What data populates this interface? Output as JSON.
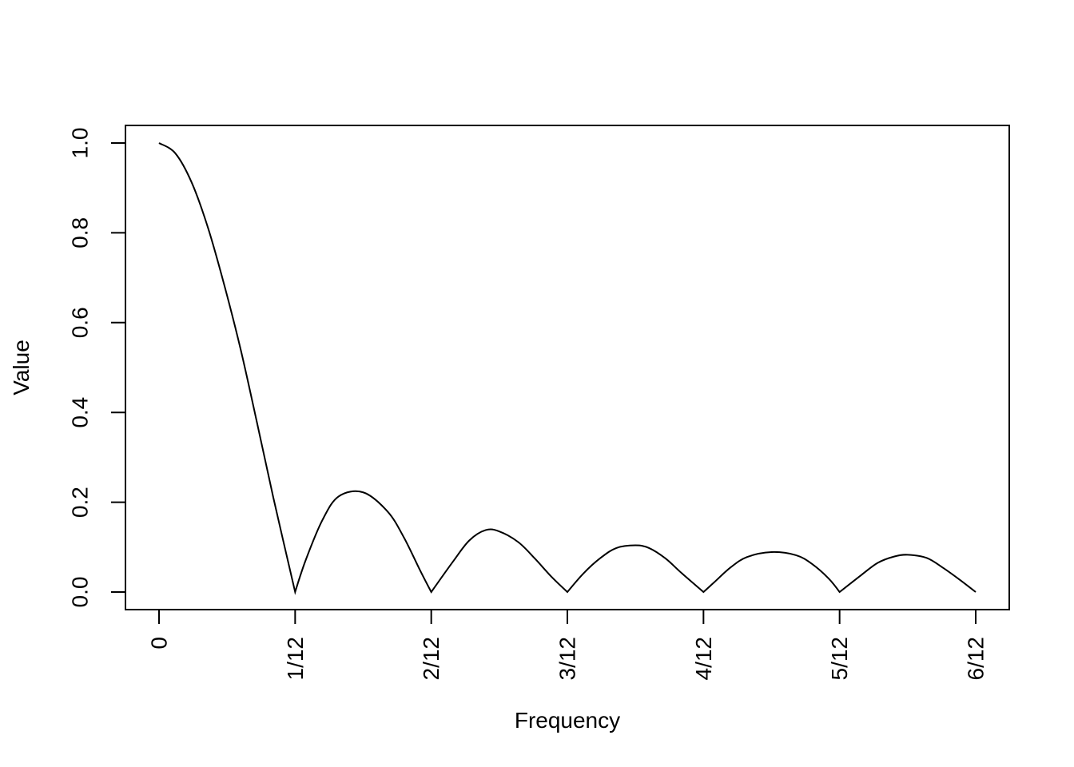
{
  "chart_data": {
    "type": "line",
    "title": "",
    "xlabel": "Frequency",
    "ylabel": "Value",
    "xlim": [
      0,
      0.5
    ],
    "ylim": [
      0,
      1
    ],
    "x_ticks": [
      0,
      0.083333,
      0.166667,
      0.25,
      0.333333,
      0.416667,
      0.5
    ],
    "x_tick_labels": [
      "0",
      "1/12",
      "2/12",
      "3/12",
      "4/12",
      "5/12",
      "6/12"
    ],
    "y_ticks": [
      0,
      0.2,
      0.4,
      0.6,
      0.8,
      1
    ],
    "y_tick_labels": [
      "0.0",
      "0.2",
      "0.4",
      "0.6",
      "0.8",
      "1.0"
    ],
    "grid": false,
    "series": [
      {
        "x": [
          0,
          0.01,
          0.02,
          0.03,
          0.04,
          0.05,
          0.06,
          0.07,
          0.083333,
          0.09,
          0.1,
          0.11,
          0.125,
          0.14,
          0.15,
          0.16,
          0.166667,
          0.18,
          0.19,
          0.2,
          0.208333,
          0.22,
          0.23,
          0.24,
          0.25,
          0.26,
          0.27,
          0.28,
          0.291667,
          0.3,
          0.31,
          0.32,
          0.333333,
          0.34,
          0.35,
          0.36,
          0.375,
          0.39,
          0.4,
          0.41,
          0.416667,
          0.43,
          0.44,
          0.45,
          0.458333,
          0.47,
          0.48,
          0.49,
          0.5
        ],
        "y": [
          1.0,
          0.977,
          0.912,
          0.811,
          0.683,
          0.54,
          0.377,
          0.21,
          0.0,
          0.073,
          0.16,
          0.213,
          0.222,
          0.179,
          0.121,
          0.047,
          0.0,
          0.068,
          0.115,
          0.138,
          0.135,
          0.111,
          0.075,
          0.035,
          0.0,
          0.042,
          0.075,
          0.098,
          0.104,
          0.098,
          0.075,
          0.042,
          0.0,
          0.022,
          0.055,
          0.078,
          0.089,
          0.082,
          0.062,
          0.03,
          0.0,
          0.038,
          0.065,
          0.079,
          0.083,
          0.076,
          0.054,
          0.028,
          0.0
        ],
        "color": "#000000"
      }
    ]
  }
}
